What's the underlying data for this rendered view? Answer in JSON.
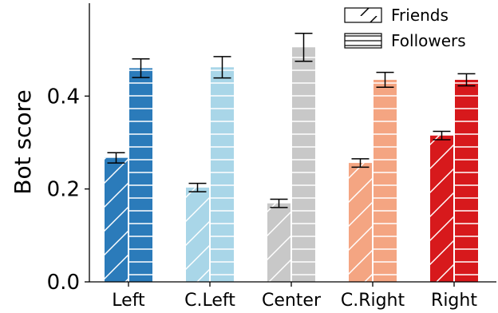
{
  "chart_data": {
    "type": "bar",
    "xlabel": "",
    "ylabel": "Bot score",
    "ylim": [
      0,
      0.6
    ],
    "yticks": [
      "0.0",
      "0.2",
      "0.4"
    ],
    "ytick_values": [
      0.0,
      0.2,
      0.4
    ],
    "categories": [
      "Left",
      "C.Left",
      "Center",
      "C.Right",
      "Right"
    ],
    "category_colors": [
      "#2b7bba",
      "#a9d6e8",
      "#c8c8c8",
      "#f4a582",
      "#d7191c"
    ],
    "series": [
      {
        "name": "Friends",
        "hatch": "diagonal",
        "values": [
          0.267,
          0.203,
          0.169,
          0.256,
          0.315
        ],
        "errors": [
          0.011,
          0.009,
          0.009,
          0.009,
          0.009
        ]
      },
      {
        "name": "Followers",
        "hatch": "horizontal",
        "values": [
          0.46,
          0.462,
          0.505,
          0.435,
          0.435
        ],
        "errors": [
          0.02,
          0.023,
          0.03,
          0.016,
          0.013
        ]
      }
    ],
    "legend": {
      "placement": "top-right"
    },
    "grid": false
  }
}
